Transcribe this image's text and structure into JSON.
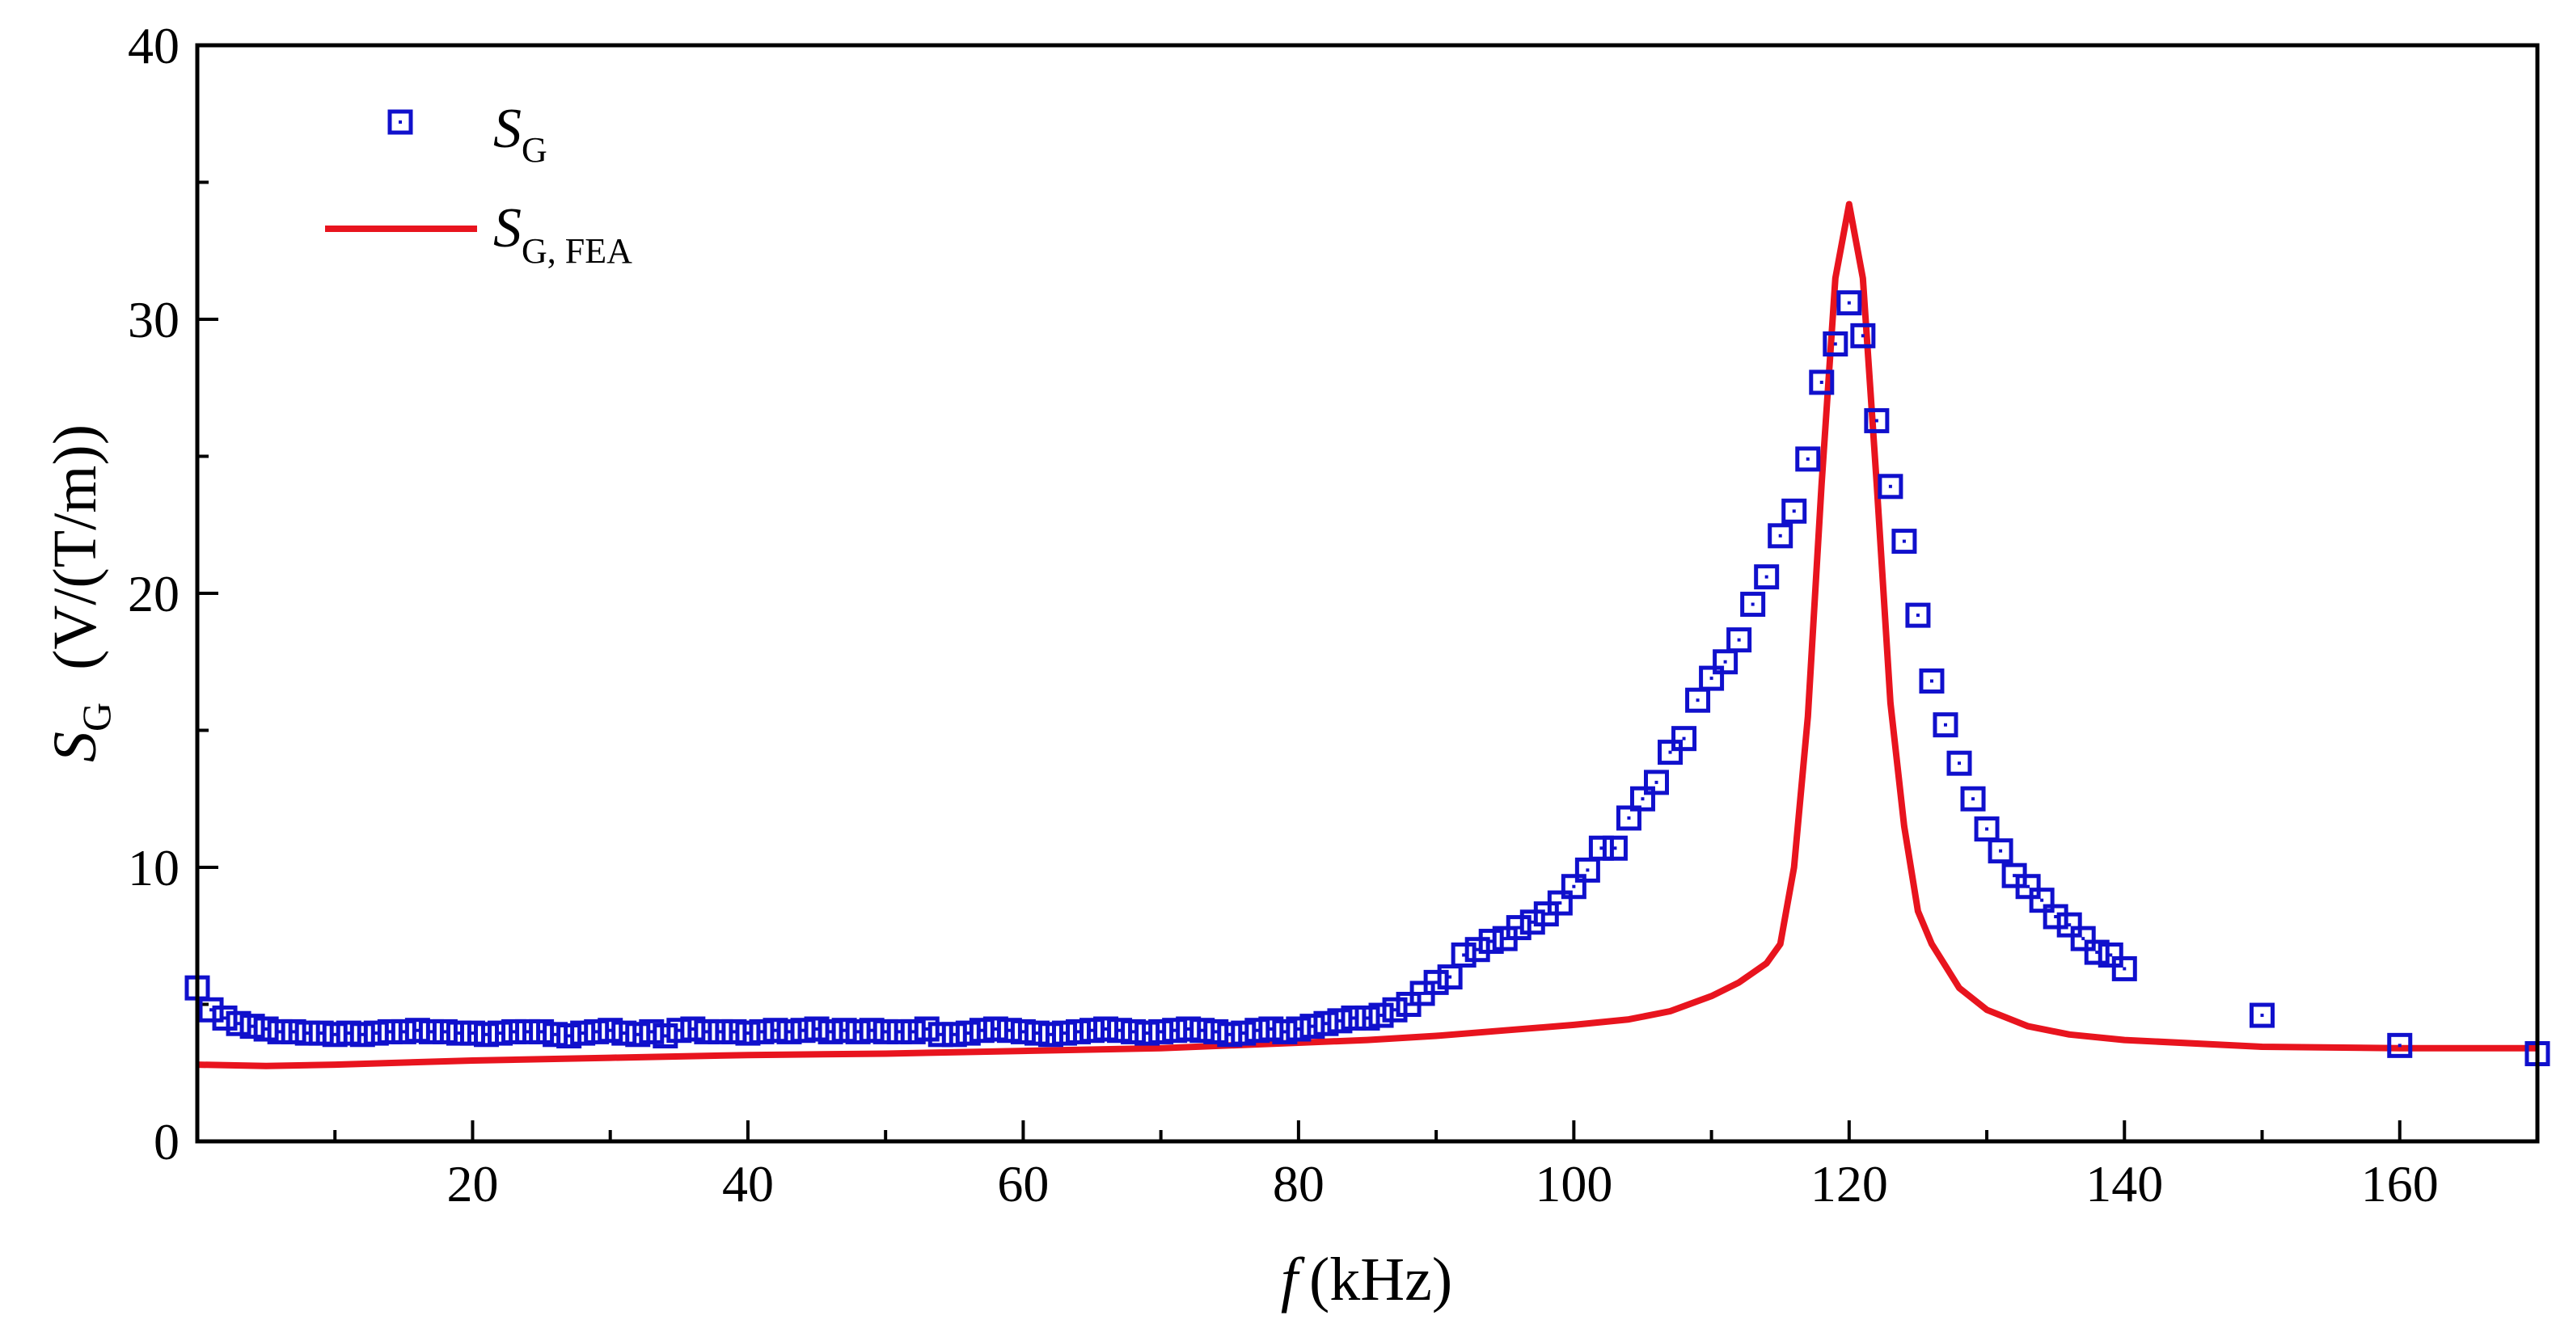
{
  "chart_data": {
    "type": "scatter",
    "xlabel": {
      "symbol": "f",
      "unit": "(kHz)"
    },
    "ylabel": {
      "symbol": "S",
      "subscript": "G",
      "unit": "(V/(T/m))"
    },
    "xlim": [
      0,
      170
    ],
    "ylim": [
      0,
      40
    ],
    "xticks": [
      20,
      40,
      60,
      80,
      100,
      120,
      140,
      160
    ],
    "yticks": [
      0,
      10,
      20,
      30,
      40
    ],
    "grid": false,
    "legend_position": "top-left",
    "series": [
      {
        "name": "S_G",
        "label": {
          "symbol": "S",
          "subscript": "G"
        },
        "kind": "scatter",
        "marker": "square-open",
        "color": "#1010cc",
        "x": [
          0,
          1,
          2,
          3,
          4,
          5,
          6,
          7,
          8,
          9,
          10,
          11,
          12,
          13,
          14,
          15,
          16,
          17,
          18,
          19,
          20,
          21,
          22,
          23,
          24,
          25,
          26,
          27,
          28,
          29,
          30,
          31,
          32,
          33,
          34,
          35,
          36,
          37,
          38,
          39,
          40,
          41,
          42,
          43,
          44,
          45,
          46,
          47,
          48,
          49,
          50,
          51,
          52,
          53,
          54,
          55,
          56,
          57,
          58,
          59,
          60,
          61,
          62,
          63,
          64,
          65,
          66,
          67,
          68,
          69,
          70,
          71,
          72,
          73,
          74,
          75,
          76,
          77,
          78,
          79,
          80,
          81,
          82,
          83,
          84,
          85,
          86,
          87,
          88,
          89,
          90,
          91,
          92,
          93,
          94,
          95,
          96,
          97,
          98,
          99,
          100,
          101,
          102,
          103,
          104,
          105,
          106,
          107,
          108,
          109,
          110,
          111,
          112,
          113,
          114,
          115,
          116,
          117,
          118,
          119,
          120,
          121,
          122,
          123,
          124,
          125,
          126,
          127,
          128,
          129,
          130,
          131,
          132,
          133,
          134,
          135,
          136,
          137,
          138,
          139,
          140,
          150,
          160,
          170
        ],
        "y": [
          5.6,
          4.8,
          4.5,
          4.3,
          4.2,
          4.1,
          4.0,
          4.0,
          3.95,
          3.95,
          3.9,
          3.95,
          3.9,
          3.95,
          4.0,
          4.0,
          4.05,
          4.0,
          4.0,
          3.95,
          3.95,
          3.9,
          3.95,
          4.0,
          4.0,
          4.0,
          3.9,
          3.85,
          3.95,
          4.0,
          4.05,
          3.95,
          3.9,
          4.0,
          3.85,
          4.05,
          4.1,
          4.0,
          4.0,
          4.0,
          3.95,
          4.0,
          4.05,
          4.0,
          4.05,
          4.1,
          4.0,
          4.05,
          4.0,
          4.05,
          4.0,
          4.0,
          4.0,
          4.1,
          3.9,
          3.9,
          3.95,
          4.05,
          4.1,
          4.05,
          4.0,
          3.95,
          3.9,
          3.95,
          4.0,
          4.05,
          4.1,
          4.05,
          4.0,
          3.95,
          4.0,
          4.05,
          4.1,
          4.05,
          4.0,
          3.9,
          3.95,
          4.05,
          4.1,
          4.0,
          4.1,
          4.2,
          4.3,
          4.4,
          4.5,
          4.5,
          4.6,
          4.8,
          5.0,
          5.4,
          5.8,
          6.0,
          6.8,
          7.0,
          7.3,
          7.4,
          7.8,
          8.0,
          8.3,
          8.7,
          9.3,
          9.9,
          10.7,
          10.7,
          11.8,
          12.5,
          13.1,
          14.2,
          14.7,
          16.1,
          16.9,
          17.5,
          18.3,
          19.6,
          20.6,
          22.1,
          23.0,
          24.9,
          27.7,
          29.1,
          30.6,
          29.4,
          26.3,
          23.9,
          21.9,
          19.2,
          16.8,
          15.2,
          13.8,
          12.5,
          11.4,
          10.6,
          9.7,
          9.3,
          8.8,
          8.2,
          7.9,
          7.4,
          6.9,
          6.8,
          6.3,
          4.6,
          3.5,
          3.2
        ]
      },
      {
        "name": "S_G,FEA",
        "label": {
          "symbol": "S",
          "subscript": "G, FEA"
        },
        "kind": "line",
        "color": "#e8141e",
        "x": [
          0,
          5,
          10,
          20,
          30,
          40,
          50,
          60,
          70,
          80,
          85,
          90,
          95,
          100,
          104,
          107,
          110,
          112,
          114,
          115,
          116,
          117,
          118,
          119,
          120,
          121,
          122,
          123,
          124,
          125,
          126,
          128,
          130,
          133,
          136,
          140,
          150,
          160,
          170
        ],
        "y": [
          2.8,
          2.75,
          2.8,
          2.95,
          3.05,
          3.15,
          3.2,
          3.3,
          3.4,
          3.6,
          3.7,
          3.85,
          4.05,
          4.25,
          4.45,
          4.75,
          5.3,
          5.8,
          6.5,
          7.2,
          10.0,
          15.5,
          24.0,
          31.5,
          34.2,
          31.5,
          24.0,
          16.0,
          11.5,
          8.4,
          7.2,
          5.6,
          4.8,
          4.2,
          3.9,
          3.7,
          3.45,
          3.4,
          3.4
        ]
      }
    ]
  }
}
